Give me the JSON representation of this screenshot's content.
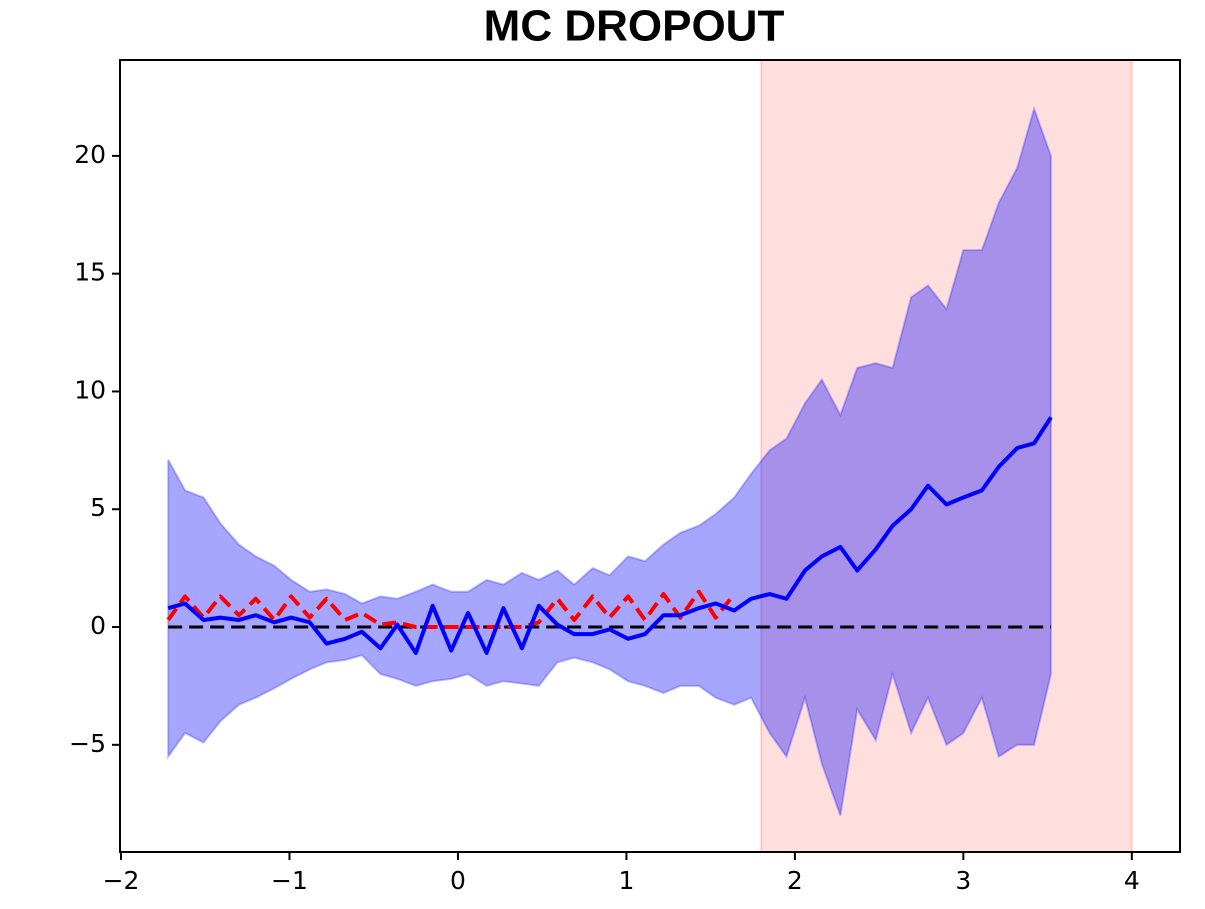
{
  "chart_data": {
    "type": "line",
    "title": "MC  DROPOUT",
    "x": [
      -1.72,
      -1.62,
      -1.51,
      -1.41,
      -1.3,
      -1.2,
      -1.09,
      -0.99,
      -0.88,
      -0.78,
      -0.67,
      -0.57,
      -0.46,
      -0.36,
      -0.25,
      -0.15,
      -0.04,
      0.06,
      0.17,
      0.27,
      0.38,
      0.48,
      0.59,
      0.69,
      0.8,
      0.9,
      1.01,
      1.11,
      1.22,
      1.32,
      1.43,
      1.53,
      1.64,
      1.74,
      1.85,
      1.95,
      2.06,
      2.16,
      2.27,
      2.37,
      2.48,
      2.58,
      2.69,
      2.79,
      2.9,
      3.0,
      3.11,
      3.21,
      3.32,
      3.42,
      3.52
    ],
    "band": {
      "color": "#0000ff",
      "opacity": 0.35,
      "upper": [
        7.1,
        5.8,
        5.5,
        4.4,
        3.5,
        3.0,
        2.6,
        2.0,
        1.5,
        1.6,
        1.4,
        1.0,
        1.3,
        1.2,
        1.5,
        1.8,
        1.5,
        1.5,
        2.0,
        1.8,
        2.3,
        2.0,
        2.4,
        1.8,
        2.5,
        2.2,
        3.0,
        2.8,
        3.5,
        4.0,
        4.3,
        4.8,
        5.5,
        6.5,
        7.5,
        8.0,
        9.5,
        10.5,
        9.0,
        11.0,
        11.2,
        11.0,
        14.0,
        14.5,
        13.5,
        16.0,
        16.0,
        18.0,
        19.5,
        22.0,
        20.0
      ],
      "lower": [
        -5.5,
        -4.5,
        -4.9,
        -4.0,
        -3.3,
        -3.0,
        -2.6,
        -2.2,
        -1.8,
        -1.5,
        -1.4,
        -1.2,
        -2.0,
        -2.2,
        -2.5,
        -2.3,
        -2.2,
        -2.0,
        -2.5,
        -2.3,
        -2.4,
        -2.5,
        -1.5,
        -1.3,
        -1.5,
        -1.8,
        -2.3,
        -2.5,
        -2.8,
        -2.5,
        -2.5,
        -3.0,
        -3.3,
        -3.0,
        -4.5,
        -5.5,
        -3.0,
        -5.8,
        -8.0,
        -3.5,
        -4.8,
        -2.0,
        -4.5,
        -3.0,
        -5.0,
        -4.5,
        -3.0,
        -5.5,
        -5.0,
        -5.0,
        -2.0
      ]
    },
    "span": {
      "x0": 1.8,
      "x1": 4.0,
      "color": "#ff0000",
      "opacity": 0.13
    },
    "series": [
      {
        "color": "#000000",
        "dash": true,
        "width": 3,
        "values": [
          0,
          0,
          0,
          0,
          0,
          0,
          0,
          0,
          0,
          0,
          0,
          0,
          0,
          0,
          0,
          0,
          0,
          0,
          0,
          0,
          0,
          0,
          0,
          0,
          0,
          0,
          0,
          0,
          0,
          0,
          0,
          0,
          0,
          0,
          0,
          0,
          0,
          0,
          0,
          0,
          0,
          0,
          0,
          0,
          0,
          0,
          0,
          0,
          0,
          0,
          0
        ]
      },
      {
        "color": "#ff0000",
        "dash": true,
        "width": 4,
        "values": [
          0.3,
          1.3,
          0.4,
          1.3,
          0.5,
          1.2,
          0.3,
          1.3,
          0.4,
          1.2,
          0.3,
          0.6,
          0.1,
          0.2,
          0.0,
          0.0,
          0.0,
          0.0,
          0.0,
          0.0,
          0.0,
          0.2,
          1.2,
          0.3,
          1.3,
          0.4,
          1.3,
          0.3,
          1.4,
          0.4,
          1.5,
          0.4,
          1.4,
          null,
          null,
          null,
          null,
          null,
          null,
          null,
          null,
          null,
          null,
          null,
          null,
          null,
          null,
          null,
          null,
          null,
          null
        ]
      },
      {
        "color": "#0000ff",
        "dash": false,
        "width": 4,
        "values": [
          0.8,
          1.0,
          0.3,
          0.4,
          0.3,
          0.5,
          0.2,
          0.4,
          0.2,
          -0.7,
          -0.5,
          -0.2,
          -0.9,
          0.1,
          -1.1,
          0.9,
          -1.0,
          0.6,
          -1.1,
          0.8,
          -0.9,
          0.9,
          0.1,
          -0.3,
          -0.3,
          -0.1,
          -0.5,
          -0.3,
          0.5,
          0.5,
          0.8,
          1.0,
          0.7,
          1.2,
          1.4,
          1.2,
          2.4,
          3.0,
          3.4,
          2.4,
          3.3,
          4.3,
          5.0,
          6.0,
          5.2,
          5.5,
          5.8,
          6.8,
          7.6,
          7.8,
          8.9
        ]
      }
    ],
    "xlim": [
      -2.006,
      4.286
    ],
    "ylim": [
      -9.55,
      24.07
    ],
    "xticks": [
      {
        "value": -2,
        "label": "−2"
      },
      {
        "value": -1,
        "label": "−1"
      },
      0,
      1,
      2,
      3,
      4
    ],
    "yticks": [
      {
        "value": -5,
        "label": "−5"
      },
      0,
      5,
      10,
      15,
      20
    ]
  }
}
